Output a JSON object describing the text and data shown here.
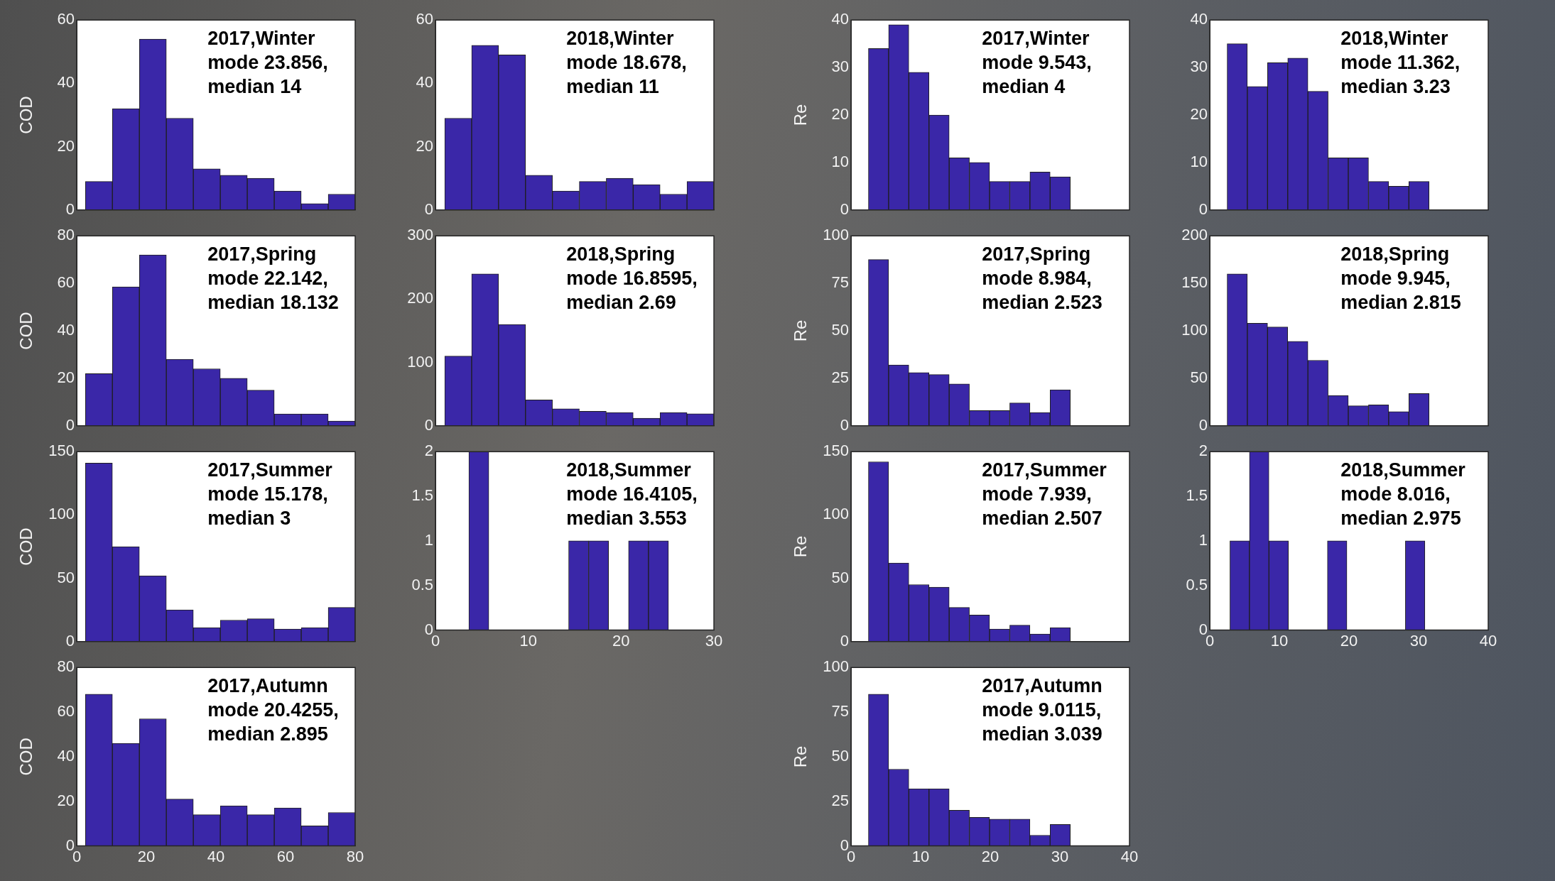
{
  "chart_data": [
    {
      "type": "histogram",
      "ylabel": "COD",
      "bins": [
        2.5,
        10.25,
        18,
        25.75,
        33.5,
        41.25,
        49,
        56.75,
        64.5,
        72.25,
        80
      ],
      "values": [
        9,
        32,
        54,
        29,
        13,
        11,
        10,
        6,
        2,
        5
      ],
      "color": "#3a27a8",
      "xlim": [
        0,
        80
      ],
      "ylim": [
        0,
        60
      ],
      "yticks": [
        0,
        20,
        40,
        60
      ],
      "tick_labels": "y",
      "annotations": [
        "2017,Winter",
        "mode 23.856,",
        "median 14"
      ]
    },
    {
      "type": "histogram",
      "bins": [
        1,
        3.9,
        6.8,
        9.7,
        12.6,
        15.5,
        18.4,
        21.3,
        24.2,
        27.1,
        30
      ],
      "values": [
        29,
        52,
        49,
        11,
        6,
        9,
        10,
        8,
        5,
        9
      ],
      "color": "#3a27a8",
      "xlim": [
        0,
        30
      ],
      "ylim": [
        0,
        60
      ],
      "yticks": [
        0,
        20,
        40,
        60
      ],
      "tick_labels": "y",
      "annotations": [
        "2018,Winter",
        "mode 18.678,",
        "median 11"
      ]
    },
    {
      "type": "histogram",
      "ylabel": "COD",
      "bins": [
        2.5,
        10.25,
        18,
        25.75,
        33.5,
        41.25,
        49,
        56.75,
        64.5,
        72.25,
        80
      ],
      "values": [
        22,
        58.5,
        72,
        28,
        24,
        20,
        15,
        5,
        5,
        2
      ],
      "color": "#3a27a8",
      "xlim": [
        0,
        80
      ],
      "ylim": [
        0,
        80
      ],
      "yticks": [
        0,
        20,
        40,
        60,
        80
      ],
      "tick_labels": "y",
      "annotations": [
        "2017,Spring",
        "mode 22.142,",
        "median 18.132"
      ]
    },
    {
      "type": "histogram",
      "bins": [
        1,
        3.9,
        6.8,
        9.7,
        12.6,
        15.5,
        18.4,
        21.3,
        24.2,
        27.1,
        30
      ],
      "values": [
        110,
        240,
        160,
        41,
        27,
        23,
        21,
        12,
        21,
        19
      ],
      "color": "#3a27a8",
      "xlim": [
        0,
        30
      ],
      "ylim": [
        0,
        300
      ],
      "yticks": [
        0,
        100,
        200,
        300
      ],
      "tick_labels": "y",
      "annotations": [
        "2018,Spring",
        "mode 16.8595,",
        "median 2.69"
      ]
    },
    {
      "type": "histogram",
      "ylabel": "COD",
      "bins": [
        2.5,
        10.25,
        18,
        25.75,
        33.5,
        41.25,
        49,
        56.75,
        64.5,
        72.25,
        80
      ],
      "values": [
        141,
        75,
        52,
        25,
        11,
        17,
        18,
        10,
        11,
        27
      ],
      "color": "#3a27a8",
      "xlim": [
        0,
        80
      ],
      "ylim": [
        0,
        150
      ],
      "yticks": [
        0,
        50,
        100,
        150
      ],
      "tick_labels": "y",
      "annotations": [
        "2017,Summer",
        "mode 15.178,",
        "median 3"
      ]
    },
    {
      "type": "histogram",
      "bins": [
        3.6,
        5.75,
        7.9,
        10.05,
        12.2,
        14.35,
        16.5,
        18.65,
        20.8,
        22.95,
        25.1
      ],
      "values": [
        2,
        0,
        0,
        0,
        0,
        1,
        1,
        0,
        1,
        1
      ],
      "color": "#3a27a8",
      "xlim": [
        0,
        30
      ],
      "xticks": [
        0,
        10,
        20,
        30
      ],
      "ylim": [
        0,
        2
      ],
      "yticks": [
        0,
        0.5,
        1,
        1.5,
        2
      ],
      "annotations": [
        "2018,Summer",
        "mode 16.4105,",
        "median 3.553"
      ]
    },
    {
      "type": "histogram",
      "ylabel": "COD",
      "bins": [
        2.5,
        10.25,
        18,
        25.75,
        33.5,
        41.25,
        49,
        56.75,
        64.5,
        72.25,
        80
      ],
      "values": [
        68,
        46,
        57,
        21,
        14,
        18,
        14,
        17,
        9,
        15
      ],
      "color": "#3a27a8",
      "xlim": [
        0,
        80
      ],
      "xticks": [
        0,
        20,
        40,
        60,
        80
      ],
      "ylim": [
        0,
        80
      ],
      "yticks": [
        0,
        20,
        40,
        60,
        80
      ],
      "annotations": [
        "2017,Autumn",
        "mode 20.4255,",
        "median 2.895"
      ]
    },
    {
      "type": "histogram",
      "ylabel": "Re",
      "bins": [
        2.5,
        5.4,
        8.3,
        11.2,
        14.1,
        17,
        19.9,
        22.8,
        25.7,
        28.6,
        31.5
      ],
      "values": [
        34,
        39,
        29,
        20,
        11,
        10,
        6,
        6,
        8,
        7
      ],
      "color": "#3a27a8",
      "xlim": [
        0,
        40
      ],
      "ylim": [
        0,
        40
      ],
      "yticks": [
        0,
        10,
        20,
        30,
        40
      ],
      "tick_labels": "y",
      "annotations": [
        "2017,Winter",
        "mode 9.543,",
        "median 4"
      ]
    },
    {
      "type": "histogram",
      "bins": [
        2.5,
        5.4,
        8.3,
        11.2,
        14.1,
        17,
        19.9,
        22.8,
        25.7,
        28.6,
        31.5
      ],
      "values": [
        35,
        26,
        31,
        32,
        25,
        11,
        11,
        6,
        5,
        6
      ],
      "color": "#3a27a8",
      "xlim": [
        0,
        40
      ],
      "ylim": [
        0,
        40
      ],
      "yticks": [
        0,
        10,
        20,
        30,
        40
      ],
      "tick_labels": "y",
      "annotations": [
        "2018,Winter",
        "mode 11.362,",
        "median 3.23"
      ]
    },
    {
      "type": "histogram",
      "ylabel": "Re",
      "bins": [
        2.5,
        5.4,
        8.3,
        11.2,
        14.1,
        17,
        19.9,
        22.8,
        25.7,
        28.6,
        31.5
      ],
      "values": [
        87.5,
        32,
        28,
        27,
        22,
        8,
        8,
        12,
        7,
        19
      ],
      "color": "#3a27a8",
      "xlim": [
        0,
        40
      ],
      "ylim": [
        0,
        100
      ],
      "yticks": [
        0,
        25,
        50,
        75,
        100
      ],
      "tick_labels": "y",
      "annotations": [
        "2017,Spring",
        "mode 8.984,",
        "median 2.523"
      ]
    },
    {
      "type": "histogram",
      "bins": [
        2.5,
        5.4,
        8.3,
        11.2,
        14.1,
        17,
        19.9,
        22.8,
        25.7,
        28.6,
        31.5
      ],
      "values": [
        160,
        108,
        104,
        89,
        69,
        32,
        21,
        22,
        15,
        34
      ],
      "color": "#3a27a8",
      "xlim": [
        0,
        40
      ],
      "ylim": [
        0,
        200
      ],
      "yticks": [
        0,
        50,
        100,
        150,
        200
      ],
      "tick_labels": "y",
      "annotations": [
        "2018,Spring",
        "mode 9.945,",
        "median 2.815"
      ]
    },
    {
      "type": "histogram",
      "ylabel": "Re",
      "bins": [
        2.5,
        5.4,
        8.3,
        11.2,
        14.1,
        17,
        19.9,
        22.8,
        25.7,
        28.6,
        31.5
      ],
      "values": [
        142,
        62,
        45,
        43,
        27,
        21,
        10,
        13,
        6,
        11
      ],
      "color": "#3a27a8",
      "xlim": [
        0,
        40
      ],
      "ylim": [
        0,
        150
      ],
      "yticks": [
        0,
        50,
        100,
        150
      ],
      "tick_labels": "y",
      "annotations": [
        "2017,Summer",
        "mode 7.939,",
        "median 2.507"
      ]
    },
    {
      "type": "histogram",
      "bins": [
        2.9,
        5.7,
        8.5,
        11.3,
        14.1,
        16.9,
        19.7,
        22.5,
        25.3,
        28.1,
        30.9
      ],
      "values": [
        1,
        2,
        1,
        0,
        0,
        1,
        0,
        0,
        0,
        1
      ],
      "color": "#3a27a8",
      "xlim": [
        0,
        40
      ],
      "xticks": [
        0,
        10,
        20,
        30,
        40
      ],
      "ylim": [
        0,
        2
      ],
      "yticks": [
        0,
        0.5,
        1,
        1.5,
        2
      ],
      "annotations": [
        "2018,Summer",
        "mode 8.016,",
        "median 2.975"
      ]
    },
    {
      "type": "histogram",
      "ylabel": "Re",
      "bins": [
        2.5,
        5.4,
        8.3,
        11.2,
        14.1,
        17,
        19.9,
        22.8,
        25.7,
        28.6,
        31.5
      ],
      "values": [
        85,
        43,
        32,
        32,
        20,
        16,
        15,
        15,
        6,
        12
      ],
      "color": "#3a27a8",
      "xlim": [
        0,
        40
      ],
      "xticks": [
        0,
        10,
        20,
        30,
        40
      ],
      "ylim": [
        0,
        100
      ],
      "yticks": [
        0,
        25,
        50,
        75,
        100
      ],
      "annotations": [
        "2017,Autumn",
        "mode 9.0115,",
        "median 3.039"
      ]
    }
  ]
}
